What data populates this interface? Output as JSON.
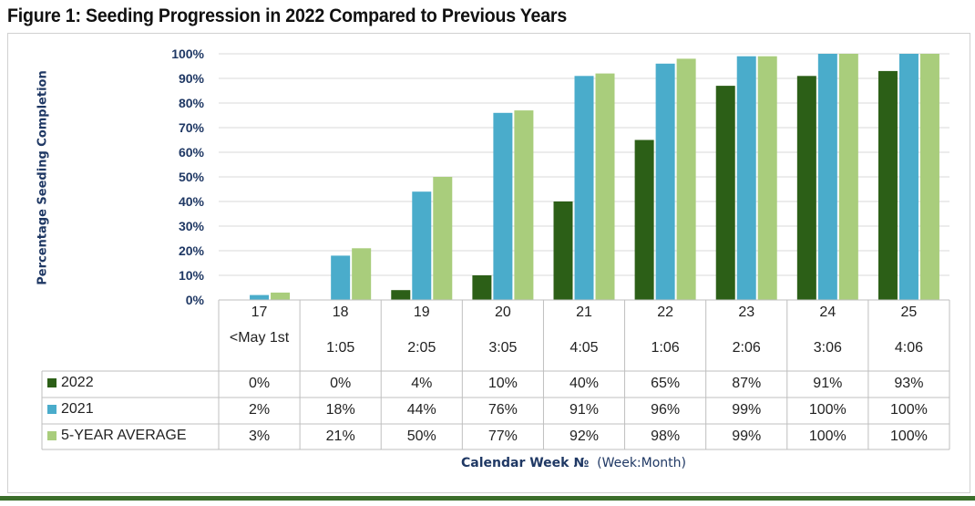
{
  "figure_title": "Figure 1: Seeding Progression in 2022 Compared to Previous Years",
  "colors": {
    "series_2022": "#2c5f17",
    "series_2021": "#4aaccb",
    "series_avg": "#a9cd7c",
    "axis_text": "#1f3864"
  },
  "chart_data": {
    "type": "bar",
    "ylabel": "Percentage Seeding Completion",
    "xlabel_main": "Calendar Week №",
    "xlabel_sub": "(Week:Month)",
    "ylim": [
      0,
      100
    ],
    "yticks": [
      "0%",
      "10%",
      "20%",
      "30%",
      "40%",
      "50%",
      "60%",
      "70%",
      "80%",
      "90%",
      "100%"
    ],
    "categories": [
      "17",
      "18",
      "19",
      "20",
      "21",
      "22",
      "23",
      "24",
      "25"
    ],
    "category_sublabels": [
      "<May 1st",
      "1:05",
      "2:05",
      "3:05",
      "4:05",
      "1:06",
      "2:06",
      "3:06",
      "4:06"
    ],
    "grid": true,
    "legend_placement": "data-table-left",
    "series": [
      {
        "name": "2022",
        "values": [
          0,
          0,
          4,
          10,
          40,
          65,
          87,
          91,
          93
        ],
        "labels": [
          "0%",
          "0%",
          "4%",
          "10%",
          "40%",
          "65%",
          "87%",
          "91%",
          "93%"
        ]
      },
      {
        "name": "2021",
        "values": [
          2,
          18,
          44,
          76,
          91,
          96,
          99,
          100,
          100
        ],
        "labels": [
          "2%",
          "18%",
          "44%",
          "76%",
          "91%",
          "96%",
          "99%",
          "100%",
          "100%"
        ]
      },
      {
        "name": "5-YEAR AVERAGE",
        "values": [
          3,
          21,
          50,
          77,
          92,
          98,
          99,
          100,
          100
        ],
        "labels": [
          "3%",
          "21%",
          "50%",
          "77%",
          "92%",
          "98%",
          "99%",
          "100%",
          "100%"
        ]
      }
    ]
  }
}
